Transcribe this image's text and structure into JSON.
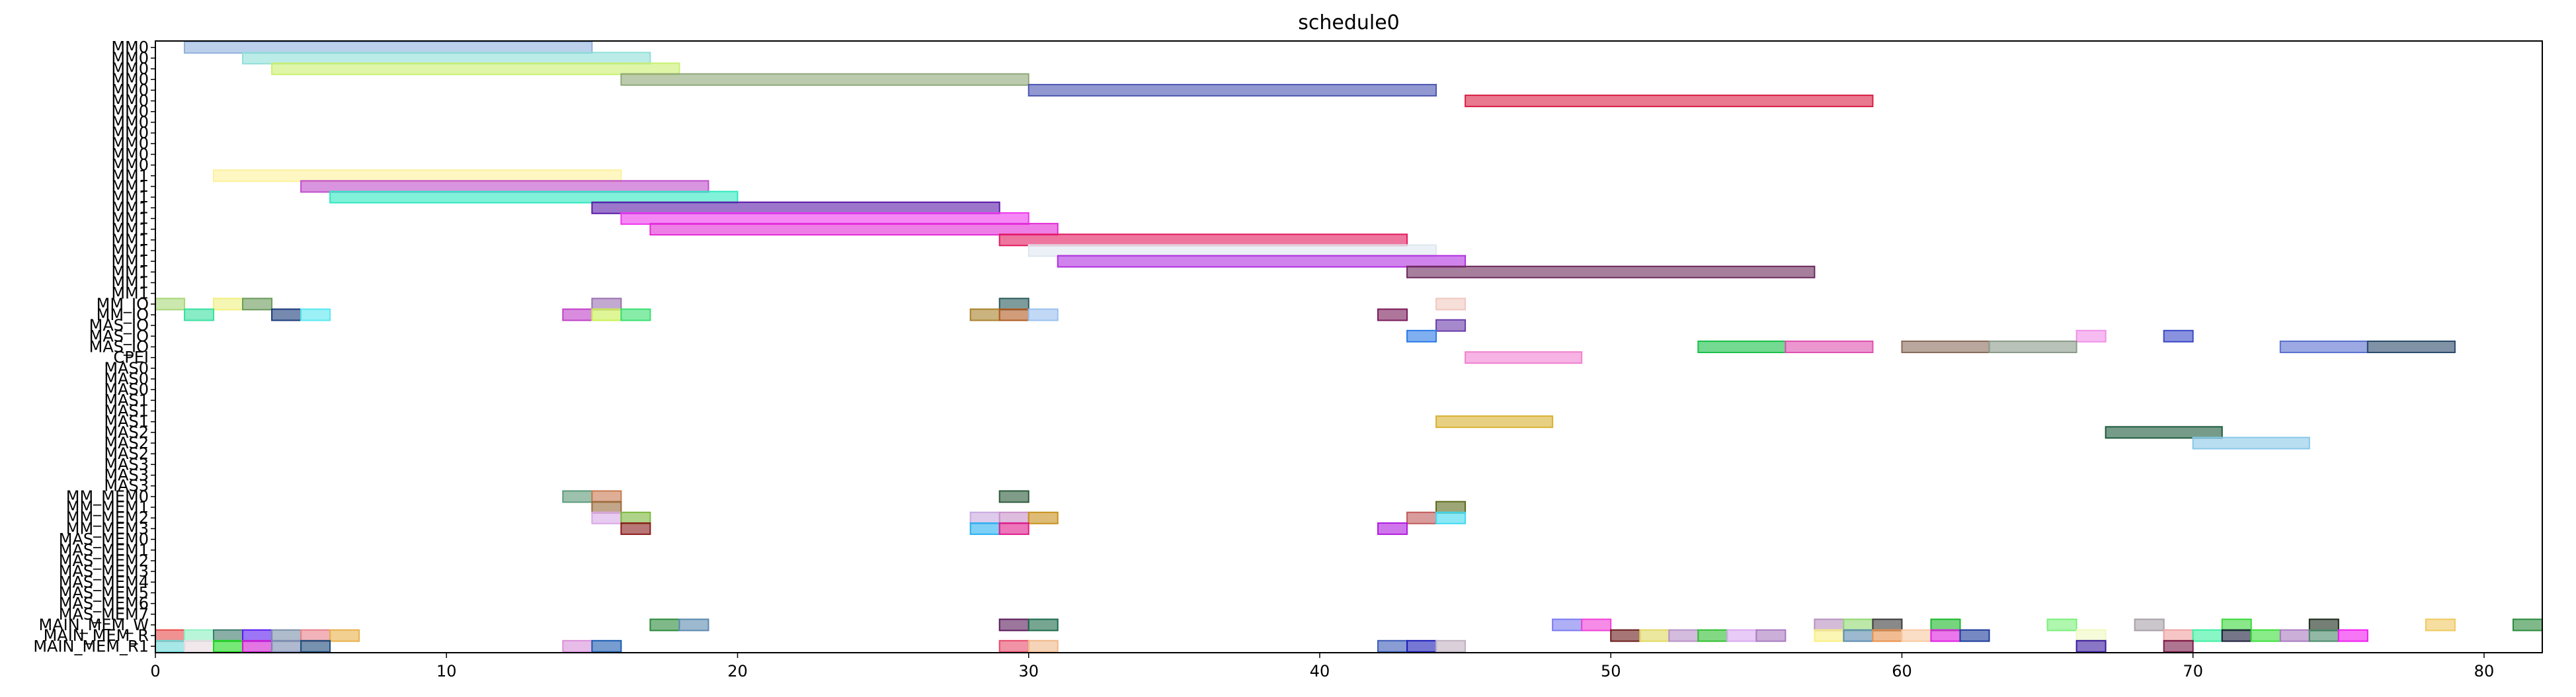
{
  "chart_data": {
    "type": "gantt",
    "title": "schedule0",
    "xlabel": "",
    "ylabel": "",
    "xlim": [
      0,
      82
    ],
    "xticks": [
      0,
      10,
      20,
      30,
      40,
      50,
      60,
      70,
      80
    ],
    "grid": false,
    "legend": "none",
    "rows": [
      "MM0",
      "MM0",
      "MM0",
      "MM0",
      "MM0",
      "MM0",
      "MM0",
      "MM0",
      "MM0",
      "MM0",
      "MM0",
      "MM0",
      "MM1",
      "MM1",
      "MM1",
      "MM1",
      "MM1",
      "MM1",
      "MM1",
      "MM1",
      "MM1",
      "MM1",
      "MM1",
      "MM1",
      "MM_IO",
      "MM_IO",
      "MAS_IO",
      "MAS_IO",
      "MAS_IO",
      "CPEI",
      "MAS0",
      "MAS0",
      "MAS0",
      "MAS1",
      "MAS1",
      "MAS1",
      "MAS2",
      "MAS2",
      "MAS2",
      "MAS3",
      "MAS3",
      "MAS3",
      "MM_MEM0",
      "MM_MEM1",
      "MM_MEM2",
      "MM_MEM3",
      "MAS_MEM0",
      "MAS_MEM1",
      "MAS_MEM2",
      "MAS_MEM3",
      "MAS_MEM4",
      "MAS_MEM5",
      "MAS_MEM6",
      "MAS_MEM7",
      "MAIN_MEM_W",
      "MAIN_MEM_R",
      "MAIN_MEM_R1"
    ],
    "tasks": [
      {
        "row": 0,
        "start": 1,
        "end": 15,
        "color": "#8fb0dd"
      },
      {
        "row": 1,
        "start": 3,
        "end": 17,
        "color": "#8fdfd8"
      },
      {
        "row": 2,
        "start": 4,
        "end": 18,
        "color": "#c9f06e"
      },
      {
        "row": 3,
        "start": 16,
        "end": 30,
        "color": "#8fa878"
      },
      {
        "row": 4,
        "start": 30,
        "end": 44,
        "color": "#4a55b0"
      },
      {
        "row": 5,
        "start": 45,
        "end": 59,
        "color": "#d81f45"
      },
      {
        "row": 12,
        "start": 2,
        "end": 16,
        "color": "#fdf19a"
      },
      {
        "row": 13,
        "start": 5,
        "end": 19,
        "color": "#c04ccc"
      },
      {
        "row": 14,
        "start": 6,
        "end": 20,
        "color": "#2ee8c0"
      },
      {
        "row": 15,
        "start": 15,
        "end": 29,
        "color": "#5a1aa8"
      },
      {
        "row": 16,
        "start": 16,
        "end": 30,
        "color": "#ee38ee"
      },
      {
        "row": 17,
        "start": 17,
        "end": 31,
        "color": "#e22ad6"
      },
      {
        "row": 18,
        "start": 29,
        "end": 43,
        "color": "#e21a5e"
      },
      {
        "row": 19,
        "start": 30,
        "end": 44,
        "color": "#dde8f0"
      },
      {
        "row": 20,
        "start": 31,
        "end": 45,
        "color": "#b030e0"
      },
      {
        "row": 21,
        "start": 43,
        "end": 57,
        "color": "#6b2a5a"
      },
      {
        "row": 24,
        "start": 0,
        "end": 1,
        "color": "#a8d878"
      },
      {
        "row": 24,
        "start": 2,
        "end": 3,
        "color": "#f0f080"
      },
      {
        "row": 24,
        "start": 3,
        "end": 4,
        "color": "#6a9a5a"
      },
      {
        "row": 24,
        "start": 15,
        "end": 16,
        "color": "#9a70b0"
      },
      {
        "row": 24,
        "start": 29,
        "end": 30,
        "color": "#2a5a5a"
      },
      {
        "row": 24,
        "start": 44,
        "end": 45,
        "color": "#f0c8c0"
      },
      {
        "row": 25,
        "start": 1,
        "end": 2,
        "color": "#38e0a0"
      },
      {
        "row": 25,
        "start": 4,
        "end": 5,
        "color": "#1a3a7a"
      },
      {
        "row": 25,
        "start": 5,
        "end": 6,
        "color": "#58e8f0"
      },
      {
        "row": 25,
        "start": 14,
        "end": 15,
        "color": "#c040c8"
      },
      {
        "row": 25,
        "start": 15,
        "end": 16,
        "color": "#c8f050"
      },
      {
        "row": 25,
        "start": 16,
        "end": 17,
        "color": "#38e070"
      },
      {
        "row": 25,
        "start": 28,
        "end": 29,
        "color": "#a8802a"
      },
      {
        "row": 25,
        "start": 29,
        "end": 30,
        "color": "#b05a20"
      },
      {
        "row": 25,
        "start": 30,
        "end": 31,
        "color": "#9ac0f0"
      },
      {
        "row": 25,
        "start": 42,
        "end": 43,
        "color": "#7a1a5a"
      },
      {
        "row": 26,
        "start": 44,
        "end": 45,
        "color": "#6a3aaa"
      },
      {
        "row": 27,
        "start": 43,
        "end": 44,
        "color": "#2a7ae8"
      },
      {
        "row": 27,
        "start": 66,
        "end": 67,
        "color": "#f090e8"
      },
      {
        "row": 27,
        "start": 69,
        "end": 70,
        "color": "#3a4ac8"
      },
      {
        "row": 28,
        "start": 53,
        "end": 56,
        "color": "#18c048"
      },
      {
        "row": 28,
        "start": 56,
        "end": 59,
        "color": "#e050b0"
      },
      {
        "row": 28,
        "start": 60,
        "end": 63,
        "color": "#8a6a5a"
      },
      {
        "row": 28,
        "start": 63,
        "end": 66,
        "color": "#8a9a88"
      },
      {
        "row": 28,
        "start": 73,
        "end": 76,
        "color": "#5a70d0"
      },
      {
        "row": 28,
        "start": 76,
        "end": 79,
        "color": "#2a4a6a"
      },
      {
        "row": 29,
        "start": 45,
        "end": 49,
        "color": "#f080d0"
      },
      {
        "row": 35,
        "start": 44,
        "end": 48,
        "color": "#d8b030"
      },
      {
        "row": 36,
        "start": 67,
        "end": 71,
        "color": "#1a5a3a"
      },
      {
        "row": 37,
        "start": 70,
        "end": 74,
        "color": "#88c8e8"
      },
      {
        "row": 42,
        "start": 14,
        "end": 15,
        "color": "#5a9a78"
      },
      {
        "row": 42,
        "start": 15,
        "end": 16,
        "color": "#c87a50"
      },
      {
        "row": 42,
        "start": 29,
        "end": 30,
        "color": "#2a5a3a"
      },
      {
        "row": 43,
        "start": 15,
        "end": 16,
        "color": "#9a6a3a"
      },
      {
        "row": 43,
        "start": 44,
        "end": 45,
        "color": "#5a6a1a"
      },
      {
        "row": 44,
        "start": 15,
        "end": 16,
        "color": "#d8a8e8"
      },
      {
        "row": 44,
        "start": 16,
        "end": 17,
        "color": "#7ab83a"
      },
      {
        "row": 44,
        "start": 28,
        "end": 29,
        "color": "#c8a8e0"
      },
      {
        "row": 44,
        "start": 29,
        "end": 30,
        "color": "#c890c8"
      },
      {
        "row": 44,
        "start": 30,
        "end": 31,
        "color": "#c8901a"
      },
      {
        "row": 44,
        "start": 43,
        "end": 44,
        "color": "#c05a5a"
      },
      {
        "row": 44,
        "start": 44,
        "end": 45,
        "color": "#40d8f0"
      },
      {
        "row": 45,
        "start": 16,
        "end": 17,
        "color": "#8a1a1a"
      },
      {
        "row": 45,
        "start": 28,
        "end": 29,
        "color": "#28b0f0"
      },
      {
        "row": 45,
        "start": 29,
        "end": 30,
        "color": "#e01a8a"
      },
      {
        "row": 45,
        "start": 42,
        "end": 43,
        "color": "#b01ae0"
      },
      {
        "row": 54,
        "start": 17,
        "end": 18,
        "color": "#2a8a3a"
      },
      {
        "row": 54,
        "start": 18,
        "end": 19,
        "color": "#5a8ab0"
      },
      {
        "row": 54,
        "start": 29,
        "end": 30,
        "color": "#5a1a5a"
      },
      {
        "row": 54,
        "start": 30,
        "end": 31,
        "color": "#1a6a4a"
      },
      {
        "row": 54,
        "start": 48,
        "end": 49,
        "color": "#7a7af0"
      },
      {
        "row": 54,
        "start": 49,
        "end": 50,
        "color": "#f040d8"
      },
      {
        "row": 54,
        "start": 57,
        "end": 58,
        "color": "#b890c0"
      },
      {
        "row": 54,
        "start": 58,
        "end": 59,
        "color": "#90d870"
      },
      {
        "row": 54,
        "start": 59,
        "end": 60,
        "color": "#3a3a3a"
      },
      {
        "row": 54,
        "start": 61,
        "end": 62,
        "color": "#1ab82a"
      },
      {
        "row": 54,
        "start": 65,
        "end": 66,
        "color": "#7af07a"
      },
      {
        "row": 54,
        "start": 68,
        "end": 69,
        "color": "#a8a0a8"
      },
      {
        "row": 54,
        "start": 71,
        "end": 72,
        "color": "#3ad83a"
      },
      {
        "row": 54,
        "start": 74,
        "end": 75,
        "color": "#1a2a1a"
      },
      {
        "row": 54,
        "start": 78,
        "end": 79,
        "color": "#f0c860"
      },
      {
        "row": 54,
        "start": 81,
        "end": 82,
        "color": "#2a8a3a"
      },
      {
        "row": 55,
        "start": 0,
        "end": 1,
        "color": "#e84a4a"
      },
      {
        "row": 55,
        "start": 1,
        "end": 2,
        "color": "#8af0c0"
      },
      {
        "row": 55,
        "start": 2,
        "end": 3,
        "color": "#3a7a6a"
      },
      {
        "row": 55,
        "start": 3,
        "end": 4,
        "color": "#5a1af0"
      },
      {
        "row": 55,
        "start": 4,
        "end": 5,
        "color": "#7a90a8"
      },
      {
        "row": 55,
        "start": 5,
        "end": 6,
        "color": "#e8808a"
      },
      {
        "row": 55,
        "start": 6,
        "end": 7,
        "color": "#e8b04a"
      },
      {
        "row": 55,
        "start": 50,
        "end": 51,
        "color": "#6a1a1a"
      },
      {
        "row": 55,
        "start": 51,
        "end": 52,
        "color": "#e0d860"
      },
      {
        "row": 55,
        "start": 52,
        "end": 53,
        "color": "#b890c8"
      },
      {
        "row": 55,
        "start": 53,
        "end": 54,
        "color": "#30c030"
      },
      {
        "row": 55,
        "start": 54,
        "end": 55,
        "color": "#d8a8f0"
      },
      {
        "row": 55,
        "start": 55,
        "end": 56,
        "color": "#a87ac0"
      },
      {
        "row": 55,
        "start": 57,
        "end": 58,
        "color": "#f8f080"
      },
      {
        "row": 55,
        "start": 58,
        "end": 59,
        "color": "#5a8ab0"
      },
      {
        "row": 55,
        "start": 59,
        "end": 60,
        "color": "#e8904a"
      },
      {
        "row": 55,
        "start": 60,
        "end": 61,
        "color": "#f8c8a0"
      },
      {
        "row": 55,
        "start": 61,
        "end": 62,
        "color": "#e01ae0"
      },
      {
        "row": 55,
        "start": 62,
        "end": 63,
        "color": "#1a3a9a"
      },
      {
        "row": 55,
        "start": 66,
        "end": 67,
        "color": "#f0f8c0"
      },
      {
        "row": 55,
        "start": 69,
        "end": 70,
        "color": "#f0a0a0"
      },
      {
        "row": 55,
        "start": 70,
        "end": 71,
        "color": "#3af0a0"
      },
      {
        "row": 55,
        "start": 71,
        "end": 72,
        "color": "#1a1a3a"
      },
      {
        "row": 55,
        "start": 72,
        "end": 73,
        "color": "#3ae03a"
      },
      {
        "row": 55,
        "start": 73,
        "end": 74,
        "color": "#a87ac0"
      },
      {
        "row": 55,
        "start": 74,
        "end": 75,
        "color": "#4a8a6a"
      },
      {
        "row": 55,
        "start": 75,
        "end": 76,
        "color": "#f01af0"
      },
      {
        "row": 56,
        "start": 0,
        "end": 1,
        "color": "#6ad8d8"
      },
      {
        "row": 56,
        "start": 1,
        "end": 2,
        "color": "#e8d8e0"
      },
      {
        "row": 56,
        "start": 2,
        "end": 3,
        "color": "#1ad81a"
      },
      {
        "row": 56,
        "start": 3,
        "end": 4,
        "color": "#d01ad0"
      },
      {
        "row": 56,
        "start": 4,
        "end": 5,
        "color": "#7a8ab0"
      },
      {
        "row": 56,
        "start": 5,
        "end": 6,
        "color": "#1a4a7a"
      },
      {
        "row": 56,
        "start": 14,
        "end": 15,
        "color": "#d890d8"
      },
      {
        "row": 56,
        "start": 15,
        "end": 16,
        "color": "#1a5ab0"
      },
      {
        "row": 56,
        "start": 29,
        "end": 30,
        "color": "#e84a6a"
      },
      {
        "row": 56,
        "start": 30,
        "end": 31,
        "color": "#f0b888"
      },
      {
        "row": 56,
        "start": 42,
        "end": 43,
        "color": "#3a5ab8"
      },
      {
        "row": 56,
        "start": 43,
        "end": 44,
        "color": "#1a1ab8"
      },
      {
        "row": 56,
        "start": 44,
        "end": 45,
        "color": "#c0b0c0"
      },
      {
        "row": 56,
        "start": 66,
        "end": 67,
        "color": "#3a1aa0"
      },
      {
        "row": 56,
        "start": 69,
        "end": 70,
        "color": "#7a1a4a"
      }
    ]
  }
}
